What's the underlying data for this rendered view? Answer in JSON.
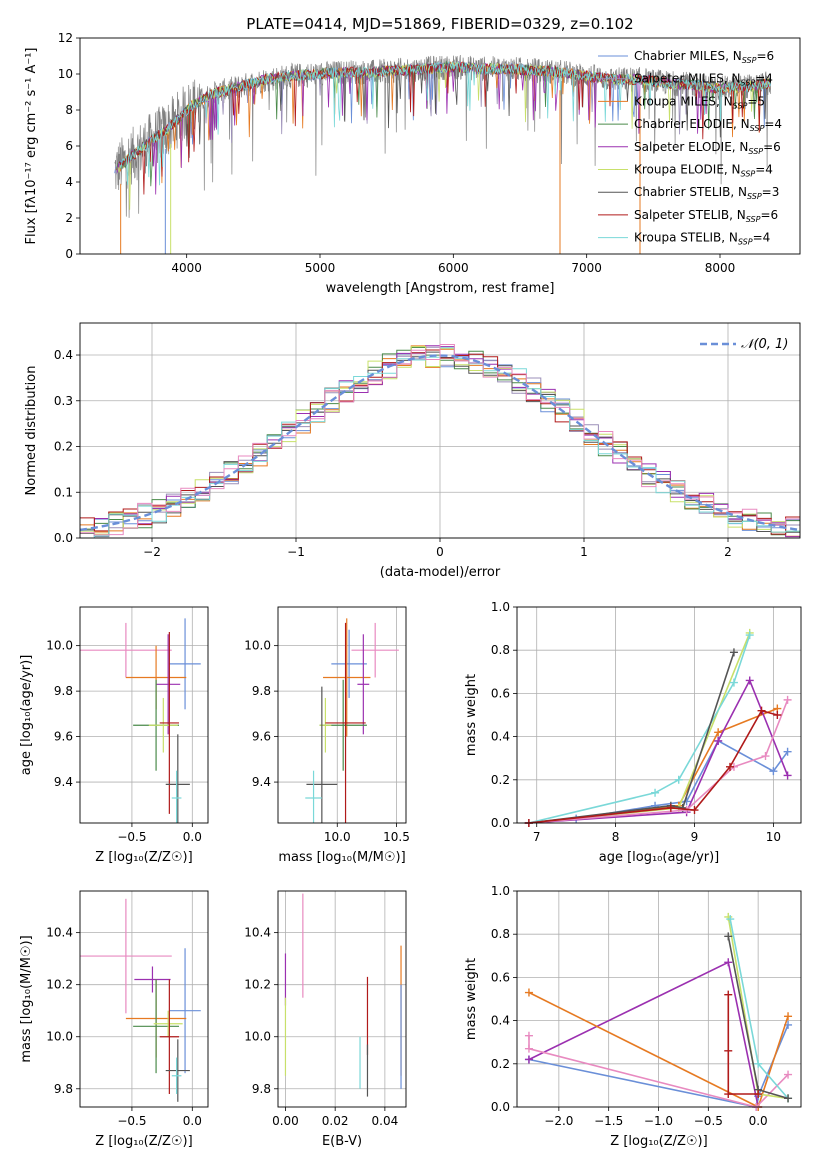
{
  "colors": {
    "chabrier_miles": "#6a8fd8",
    "salpeter_miles": "#9b8fb8",
    "kroupa_miles": "#e67a22",
    "chabrier_elodie": "#4a8a4a",
    "salpeter_elodie": "#9b30b0",
    "kroupa_elodie": "#c8e06a",
    "chabrier_stelib": "#555555",
    "salpeter_stelib": "#b01a1a",
    "kroupa_stelib": "#7ad8d8",
    "pink": "#e88ac0",
    "spectrum_data": "#808080",
    "normal_curve": "#6a8fd8"
  },
  "chart_data": [
    {
      "id": "spectrum",
      "type": "line",
      "title": "PLATE=0414, MJD=51869, FIBERID=0329, z=0.102",
      "xlabel": "wavelength [Angstrom, rest frame]",
      "ylabel": "Flux [fλ10⁻¹⁷ erg cm⁻² s⁻¹ A⁻¹]",
      "xlim": [
        3200,
        8600
      ],
      "ylim": [
        0,
        12
      ],
      "xticks": [
        4000,
        5000,
        6000,
        7000,
        8000
      ],
      "yticks": [
        0,
        2,
        4,
        6,
        8,
        10,
        12
      ],
      "legend_position": "right",
      "continuum": {
        "x": [
          3460,
          3550,
          3650,
          3750,
          3850,
          3950,
          4050,
          4200,
          4400,
          4600,
          4800,
          5000,
          5200,
          5400,
          5600,
          5800,
          6000,
          6200,
          6400,
          6600,
          6800,
          7000,
          7200,
          7400,
          7600,
          7800,
          8000,
          8200,
          8400
        ],
        "y": [
          4.6,
          5.2,
          5.8,
          6.4,
          6.9,
          7.6,
          8.3,
          8.9,
          9.3,
          9.7,
          9.9,
          10.0,
          10.1,
          10.1,
          10.2,
          10.3,
          10.4,
          10.3,
          10.3,
          10.2,
          10.1,
          9.9,
          9.7,
          9.7,
          9.5,
          9.4,
          9.2,
          9.3,
          9.5
        ]
      },
      "series": [
        {
          "name": "Chabrier MILES, Nₛₛₚ=6",
          "label": "Chabrier MILES, N",
          "sub": "SSP",
          "suffix": "=6",
          "color": "#6a8fd8"
        },
        {
          "name": "Salpeter MILES, Nₛₛₚ=4",
          "label": "Salpeter MILES, N",
          "sub": "SSP",
          "suffix": "=4",
          "color": "#9b8fb8"
        },
        {
          "name": "Kroupa MILES, Nₛₛₚ=5",
          "label": "Kroupa MILES, N",
          "sub": "SSP",
          "suffix": "=5",
          "color": "#e67a22"
        },
        {
          "name": "Chabrier ELODIE, Nₛₛₚ=4",
          "label": "Chabrier ELODIE, N",
          "sub": "SSP",
          "suffix": "=4",
          "color": "#4a8a4a"
        },
        {
          "name": "Salpeter ELODIE, Nₛₛₚ=6",
          "label": "Salpeter ELODIE, N",
          "sub": "SSP",
          "suffix": "=6",
          "color": "#9b30b0"
        },
        {
          "name": "Kroupa ELODIE, Nₛₛₚ=4",
          "label": "Kroupa ELODIE, N",
          "sub": "SSP",
          "suffix": "=4",
          "color": "#c8e06a"
        },
        {
          "name": "Chabrier STELIB, Nₛₛₚ=3",
          "label": "Chabrier STELIB, N",
          "sub": "SSP",
          "suffix": "=3",
          "color": "#555555"
        },
        {
          "name": "Salpeter STELIB, Nₛₛₚ=6",
          "label": "Salpeter STELIB, N",
          "sub": "SSP",
          "suffix": "=6",
          "color": "#b01a1a"
        },
        {
          "name": "Kroupa STELIB, Nₛₛₚ=4",
          "label": "Kroupa STELIB, N",
          "sub": "SSP",
          "suffix": "=4",
          "color": "#7ad8d8"
        }
      ]
    },
    {
      "id": "residuals",
      "type": "histogram",
      "xlabel": "(data-model)/error",
      "ylabel": "Normed distribution",
      "xlim": [
        -2.5,
        2.5
      ],
      "ylim": [
        0,
        0.47
      ],
      "xticks": [
        -2,
        -1,
        0,
        1,
        2
      ],
      "xtick_labels": [
        "−2",
        "−1",
        "0",
        "1",
        "2"
      ],
      "yticks": [
        0.0,
        0.1,
        0.2,
        0.3,
        0.4
      ],
      "ytick_labels": [
        "0.0",
        "0.1",
        "0.2",
        "0.3",
        "0.4"
      ],
      "grid": true,
      "legend_position": "top-right",
      "normal_label": "𝒩(0, 1)",
      "bin_width": 0.1
    },
    {
      "id": "age_vs_z",
      "type": "errorbar",
      "xlabel": "Z [log₁₀(Z/Z☉)]",
      "ylabel": "age  [log₁₀(age/yr)]",
      "xlim": [
        -0.93,
        0.13
      ],
      "ylim": [
        9.22,
        10.17
      ],
      "xticks": [
        -0.5,
        0.0
      ],
      "xtick_labels": [
        "−0.5",
        "0.0"
      ],
      "yticks": [
        9.4,
        9.6,
        9.8,
        10.0
      ],
      "ytick_labels": [
        "9.4",
        "9.6",
        "9.8",
        "10.0"
      ],
      "points": [
        {
          "x": -0.55,
          "xerr": 0.38,
          "y": 9.98,
          "yerr": 0.12,
          "color": "#e88ac0"
        },
        {
          "x": -0.06,
          "xerr": 0.13,
          "y": 9.92,
          "yerr": 0.2,
          "color": "#6a8fd8"
        },
        {
          "x": -0.3,
          "xerr": 0.25,
          "y": 9.86,
          "yerr": 0.14,
          "color": "#e67a22"
        },
        {
          "x": -0.2,
          "xerr": 0.1,
          "y": 9.83,
          "yerr": 0.22,
          "color": "#9b30b0"
        },
        {
          "x": -0.3,
          "xerr": 0.19,
          "y": 9.65,
          "yerr": 0.2,
          "color": "#4a8a4a"
        },
        {
          "x": -0.24,
          "xerr": 0.12,
          "y": 9.65,
          "yerr": 0.12,
          "color": "#c8e06a"
        },
        {
          "x": -0.19,
          "xerr": 0.08,
          "y": 9.66,
          "yerr": 0.4,
          "color": "#b01a1a"
        },
        {
          "x": -0.12,
          "xerr": 0.1,
          "y": 9.39,
          "yerr": 0.22,
          "color": "#555555"
        },
        {
          "x": -0.13,
          "xerr": 0.04,
          "y": 9.33,
          "yerr": 0.12,
          "color": "#7ad8d8"
        }
      ]
    },
    {
      "id": "age_vs_mass",
      "type": "errorbar",
      "xlabel": "mass [log₁₀(M/M☉)]",
      "xlim": [
        9.5,
        10.58
      ],
      "ylim": [
        9.22,
        10.17
      ],
      "xticks": [
        10.0,
        10.5
      ],
      "xtick_labels": [
        "10.0",
        "10.5"
      ],
      "yticks": [
        9.4,
        9.6,
        9.8,
        10.0
      ],
      "ytick_labels": [
        "9.4",
        "9.6",
        "9.8",
        "10.0"
      ],
      "points": [
        {
          "x": 10.32,
          "xerr": 0.2,
          "y": 9.98,
          "yerr": 0.12,
          "color": "#e88ac0"
        },
        {
          "x": 10.1,
          "xerr": 0.15,
          "y": 9.92,
          "yerr": 0.15,
          "color": "#6a8fd8"
        },
        {
          "x": 10.08,
          "xerr": 0.2,
          "y": 9.86,
          "yerr": 0.26,
          "color": "#e67a22"
        },
        {
          "x": 10.22,
          "xerr": 0.05,
          "y": 9.83,
          "yerr": 0.22,
          "color": "#9b30b0"
        },
        {
          "x": 10.05,
          "xerr": 0.2,
          "y": 9.65,
          "yerr": 0.2,
          "color": "#4a8a4a"
        },
        {
          "x": 9.9,
          "xerr": 0.05,
          "y": 9.65,
          "yerr": 0.12,
          "color": "#c8e06a"
        },
        {
          "x": 10.07,
          "xerr": 0.17,
          "y": 9.66,
          "yerr": 0.44,
          "color": "#b01a1a"
        },
        {
          "x": 9.87,
          "xerr": 0.13,
          "y": 9.39,
          "yerr": 0.43,
          "color": "#555555"
        },
        {
          "x": 9.8,
          "xerr": 0.07,
          "y": 9.33,
          "yerr": 0.12,
          "color": "#7ad8d8"
        }
      ]
    },
    {
      "id": "weight_vs_age",
      "type": "line",
      "xlabel": "age  [log₁₀(age/yr)]",
      "ylabel": "mass weight",
      "xlim": [
        6.75,
        10.35
      ],
      "ylim": [
        0,
        1.0
      ],
      "xticks": [
        7,
        8,
        9,
        10
      ],
      "yticks": [
        0.0,
        0.2,
        0.4,
        0.6,
        0.8,
        1.0
      ],
      "ytick_labels": [
        "0.0",
        "0.2",
        "0.4",
        "0.6",
        "0.8",
        "1.0"
      ],
      "series": [
        {
          "color": "#6a8fd8",
          "x": [
            6.9,
            7.5,
            8.5,
            8.9,
            9.3,
            10.0,
            10.18
          ],
          "y": [
            0.0,
            0.02,
            0.08,
            0.1,
            0.38,
            0.24,
            0.33
          ]
        },
        {
          "color": "#e67a22",
          "x": [
            6.9,
            8.8,
            9.3,
            10.05
          ],
          "y": [
            0.0,
            0.08,
            0.42,
            0.53
          ]
        },
        {
          "color": "#9b30b0",
          "x": [
            6.9,
            8.9,
            9.3,
            9.7,
            10.18
          ],
          "y": [
            0.0,
            0.05,
            0.38,
            0.66,
            0.22
          ]
        },
        {
          "color": "#c8e06a",
          "x": [
            6.9,
            8.8,
            9.7
          ],
          "y": [
            0.0,
            0.07,
            0.88
          ]
        },
        {
          "color": "#7ad8d8",
          "x": [
            6.9,
            8.5,
            8.8,
            9.5,
            9.7
          ],
          "y": [
            0.0,
            0.14,
            0.2,
            0.65,
            0.87
          ]
        },
        {
          "color": "#555555",
          "x": [
            6.9,
            8.7,
            8.85,
            9.5
          ],
          "y": [
            0.0,
            0.08,
            0.07,
            0.79
          ]
        },
        {
          "color": "#e88ac0",
          "x": [
            6.9,
            8.9,
            9.5,
            9.9,
            10.18
          ],
          "y": [
            0.0,
            0.06,
            0.26,
            0.31,
            0.57
          ]
        },
        {
          "color": "#b01a1a",
          "x": [
            6.9,
            8.7,
            9.0,
            9.45,
            9.85,
            10.05
          ],
          "y": [
            0.0,
            0.07,
            0.06,
            0.26,
            0.52,
            0.5
          ]
        }
      ]
    },
    {
      "id": "mass_vs_z",
      "type": "errorbar",
      "xlabel": "Z [log₁₀(Z/Z☉)]",
      "ylabel": "mass [log₁₀(M/M☉)]",
      "xlim": [
        -0.93,
        0.13
      ],
      "ylim": [
        9.73,
        10.56
      ],
      "xticks": [
        -0.5,
        0.0
      ],
      "xtick_labels": [
        "−0.5",
        "0.0"
      ],
      "yticks": [
        9.8,
        10.0,
        10.2,
        10.4
      ],
      "ytick_labels": [
        "9.8",
        "10.0",
        "10.2",
        "10.4"
      ],
      "points": [
        {
          "x": -0.55,
          "xerr": 0.38,
          "y": 10.31,
          "yerr": 0.22,
          "color": "#e88ac0"
        },
        {
          "x": -0.33,
          "xerr": 0.15,
          "y": 10.22,
          "yerr": 0.05,
          "color": "#9b30b0"
        },
        {
          "x": -0.06,
          "xerr": 0.13,
          "y": 10.1,
          "yerr": 0.24,
          "color": "#6a8fd8"
        },
        {
          "x": -0.3,
          "xerr": 0.25,
          "y": 10.07,
          "yerr": 0.15,
          "color": "#e67a22"
        },
        {
          "x": -0.3,
          "xerr": 0.19,
          "y": 10.04,
          "yerr": 0.18,
          "color": "#4a8a4a"
        },
        {
          "x": -0.2,
          "xerr": 0.12,
          "y": 10.05,
          "yerr": 0.05,
          "color": "#c8e06a"
        },
        {
          "x": -0.19,
          "xerr": 0.08,
          "y": 10.0,
          "yerr": 0.22,
          "color": "#b01a1a"
        },
        {
          "x": -0.12,
          "xerr": 0.1,
          "y": 9.87,
          "yerr": 0.12,
          "color": "#555555"
        },
        {
          "x": -0.13,
          "xerr": 0.04,
          "y": 9.85,
          "yerr": 0.07,
          "color": "#7ad8d8"
        }
      ]
    },
    {
      "id": "mass_vs_ebv",
      "type": "errorbar",
      "xlabel": "E(B-V)",
      "xlim": [
        -0.003,
        0.0485
      ],
      "ylim": [
        9.73,
        10.56
      ],
      "xticks": [
        0.0,
        0.02,
        0.04
      ],
      "xtick_labels": [
        "0.00",
        "0.02",
        "0.04"
      ],
      "yticks": [
        9.8,
        10.0,
        10.2,
        10.4
      ],
      "ytick_labels": [
        "9.8",
        "10.0",
        "10.2",
        "10.4"
      ],
      "points": [
        {
          "x": 0.007,
          "xerr": 0,
          "y": 10.35,
          "yerr": 0.2,
          "color": "#e88ac0"
        },
        {
          "x": 0.0,
          "xerr": 0,
          "y": 10.22,
          "yerr": 0.1,
          "color": "#9b30b0"
        },
        {
          "x": 0.0,
          "xerr": 0,
          "y": 10.0,
          "yerr": 0.15,
          "color": "#c8e06a"
        },
        {
          "x": 0.033,
          "xerr": 0,
          "y": 10.08,
          "yerr": 0.15,
          "color": "#b01a1a"
        },
        {
          "x": 0.033,
          "xerr": 0,
          "y": 9.87,
          "yerr": 0.1,
          "color": "#555555"
        },
        {
          "x": 0.03,
          "xerr": 0,
          "y": 9.9,
          "yerr": 0.1,
          "color": "#7ad8d8"
        },
        {
          "x": 0.0465,
          "xerr": 0,
          "y": 10.1,
          "yerr": 0.25,
          "color": "#e67a22"
        },
        {
          "x": 0.0465,
          "xerr": 0,
          "y": 10.0,
          "yerr": 0.2,
          "color": "#6a8fd8"
        }
      ]
    },
    {
      "id": "weight_vs_z",
      "type": "line",
      "xlabel": "Z [log₁₀(Z/Z☉)]",
      "ylabel": "mass weight",
      "xlim": [
        -2.42,
        0.43
      ],
      "ylim": [
        0,
        1.0
      ],
      "xticks": [
        -2.0,
        -1.5,
        -1.0,
        -0.5,
        0.0
      ],
      "xtick_labels": [
        "−2.0",
        "−1.5",
        "−1.0",
        "−0.5",
        "0.0"
      ],
      "yticks": [
        0.0,
        0.2,
        0.4,
        0.6,
        0.8,
        1.0
      ],
      "ytick_labels": [
        "0.0",
        "0.2",
        "0.4",
        "0.6",
        "0.8",
        "1.0"
      ],
      "series": [
        {
          "color": "#6a8fd8",
          "x": [
            -2.3,
            -0.02,
            0.0,
            0.3
          ],
          "y": [
            0.22,
            0.0,
            0.05,
            0.38
          ]
        },
        {
          "color": "#9b30b0",
          "x": [
            -2.3,
            -0.3,
            0.0
          ],
          "y": [
            0.22,
            0.67,
            0.0
          ]
        },
        {
          "color": "#e67a22",
          "x": [
            -2.3,
            0.0,
            0.3
          ],
          "y": [
            0.53,
            0.0,
            0.42
          ]
        },
        {
          "color": "#e88ac0",
          "x": [
            -2.3,
            -2.3,
            -0.02,
            0.3
          ],
          "y": [
            0.33,
            0.27,
            0.0,
            0.15
          ]
        },
        {
          "color": "#c8e06a",
          "x": [
            -0.3,
            0.0,
            0.3
          ],
          "y": [
            0.88,
            0.06,
            0.04
          ]
        },
        {
          "color": "#7ad8d8",
          "x": [
            -0.28,
            0.0,
            0.3
          ],
          "y": [
            0.87,
            0.2,
            0.04
          ]
        },
        {
          "color": "#555555",
          "x": [
            -0.3,
            0.0,
            0.3
          ],
          "y": [
            0.79,
            0.08,
            0.04
          ]
        },
        {
          "color": "#b01a1a",
          "x": [
            -0.3,
            -0.3,
            -0.3,
            0.0
          ],
          "y": [
            0.52,
            0.26,
            0.06,
            0.06
          ]
        }
      ]
    }
  ]
}
